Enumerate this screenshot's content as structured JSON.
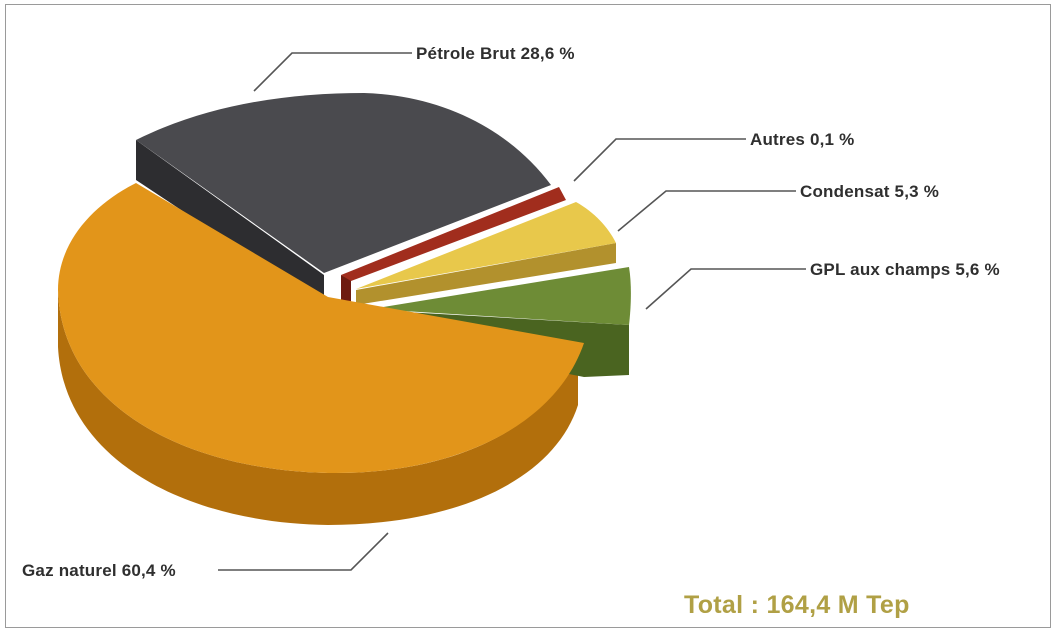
{
  "chart_data": {
    "type": "pie",
    "title": "",
    "slices": [
      {
        "label": "Pétrole Brut 28,6 %",
        "name": "Pétrole Brut",
        "value": 28.6,
        "color": "#4a4a4e",
        "side_color": "#2d2d30"
      },
      {
        "label": "Autres 0,1 %",
        "name": "Autres",
        "value": 0.1,
        "color": "#a12d1d",
        "side_color": "#6e1b10"
      },
      {
        "label": "Condensat 5,3 %",
        "name": "Condensat",
        "value": 5.3,
        "color": "#e8c84b",
        "side_color": "#b2912d"
      },
      {
        "label": "GPL aux champs 5,6 %",
        "name": "GPL aux champs",
        "value": 5.6,
        "color": "#6e8c36",
        "side_color": "#4a6420"
      },
      {
        "label": "Gaz naturel 60,4 %",
        "name": "Gaz naturel",
        "value": 60.4,
        "color": "#e2951a",
        "side_color": "#b26f0c"
      }
    ],
    "total_label": "Total : 164,4 M Tep",
    "total_color": "#b0a045"
  }
}
